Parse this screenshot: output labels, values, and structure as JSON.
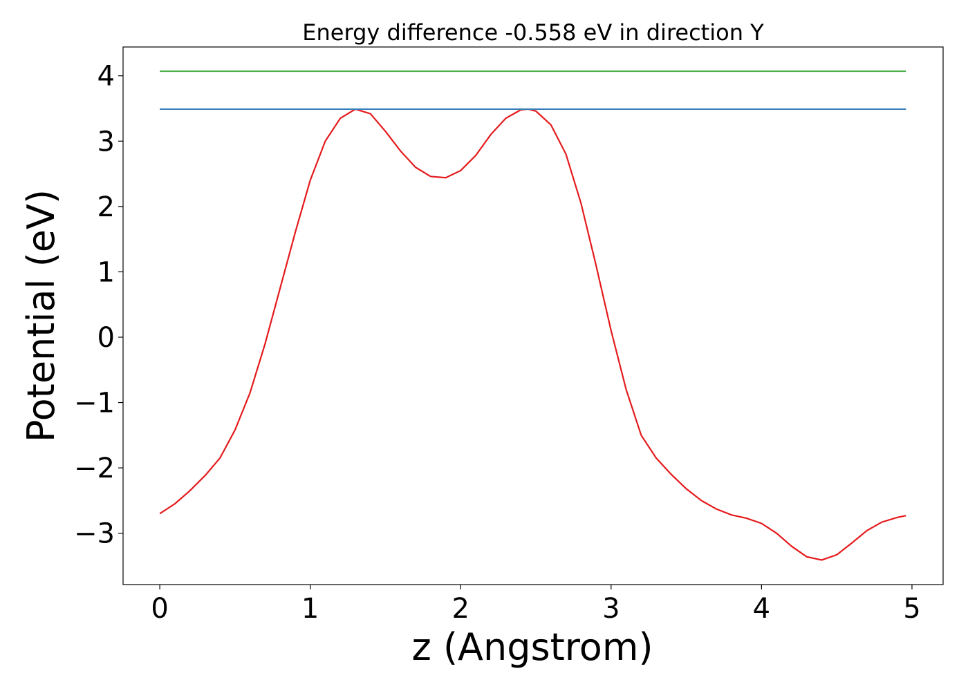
{
  "chart_data": {
    "type": "line",
    "title": "Energy difference -0.558 eV in direction Y",
    "x_label": "z (Angstrom)",
    "y_label": "Potential (eV)",
    "xlim": [
      -0.244,
      5.207
    ],
    "ylim": [
      -3.786,
      4.441
    ],
    "xticks": [
      0,
      1,
      2,
      3,
      4,
      5
    ],
    "yticks": [
      {
        "value": -3,
        "label": "−3"
      },
      {
        "value": -2,
        "label": "−2"
      },
      {
        "value": -1,
        "label": "−1"
      },
      0,
      1,
      2,
      3,
      4
    ],
    "grid": false,
    "series": [
      {
        "color": "#e41a1c",
        "x": [
          0,
          0.1,
          0.2,
          0.3,
          0.4,
          0.5,
          0.6,
          0.7,
          0.8,
          0.9,
          1.0,
          1.1,
          1.2,
          1.3,
          1.4,
          1.5,
          1.6,
          1.7,
          1.8,
          1.9,
          2.0,
          2.1,
          2.2,
          2.3,
          2.4,
          2.45,
          2.5,
          2.6,
          2.7,
          2.8,
          2.9,
          3.0,
          3.1,
          3.2,
          3.3,
          3.4,
          3.5,
          3.6,
          3.7,
          3.8,
          3.9,
          4.0,
          4.1,
          4.2,
          4.3,
          4.4,
          4.5,
          4.6,
          4.7,
          4.8,
          4.9,
          4.96
        ],
        "values": [
          -2.7,
          -2.55,
          -2.35,
          -2.12,
          -1.85,
          -1.42,
          -0.85,
          -0.1,
          0.75,
          1.6,
          2.4,
          3.0,
          3.35,
          3.49,
          3.42,
          3.15,
          2.85,
          2.6,
          2.46,
          2.44,
          2.55,
          2.78,
          3.1,
          3.35,
          3.48,
          3.49,
          3.46,
          3.25,
          2.8,
          2.05,
          1.1,
          0.1,
          -0.8,
          -1.5,
          -1.85,
          -2.1,
          -2.32,
          -2.5,
          -2.63,
          -2.72,
          -2.77,
          -2.85,
          -3.0,
          -3.2,
          -3.36,
          -3.41,
          -3.33,
          -3.15,
          -2.96,
          -2.83,
          -2.76,
          -2.73
        ]
      },
      {
        "color": "#377eb8",
        "x": [
          0,
          4.96
        ],
        "values": [
          3.49,
          3.49
        ]
      },
      {
        "color": "#4daf4a",
        "x": [
          0,
          4.96
        ],
        "values": [
          4.07,
          4.07
        ]
      }
    ]
  }
}
